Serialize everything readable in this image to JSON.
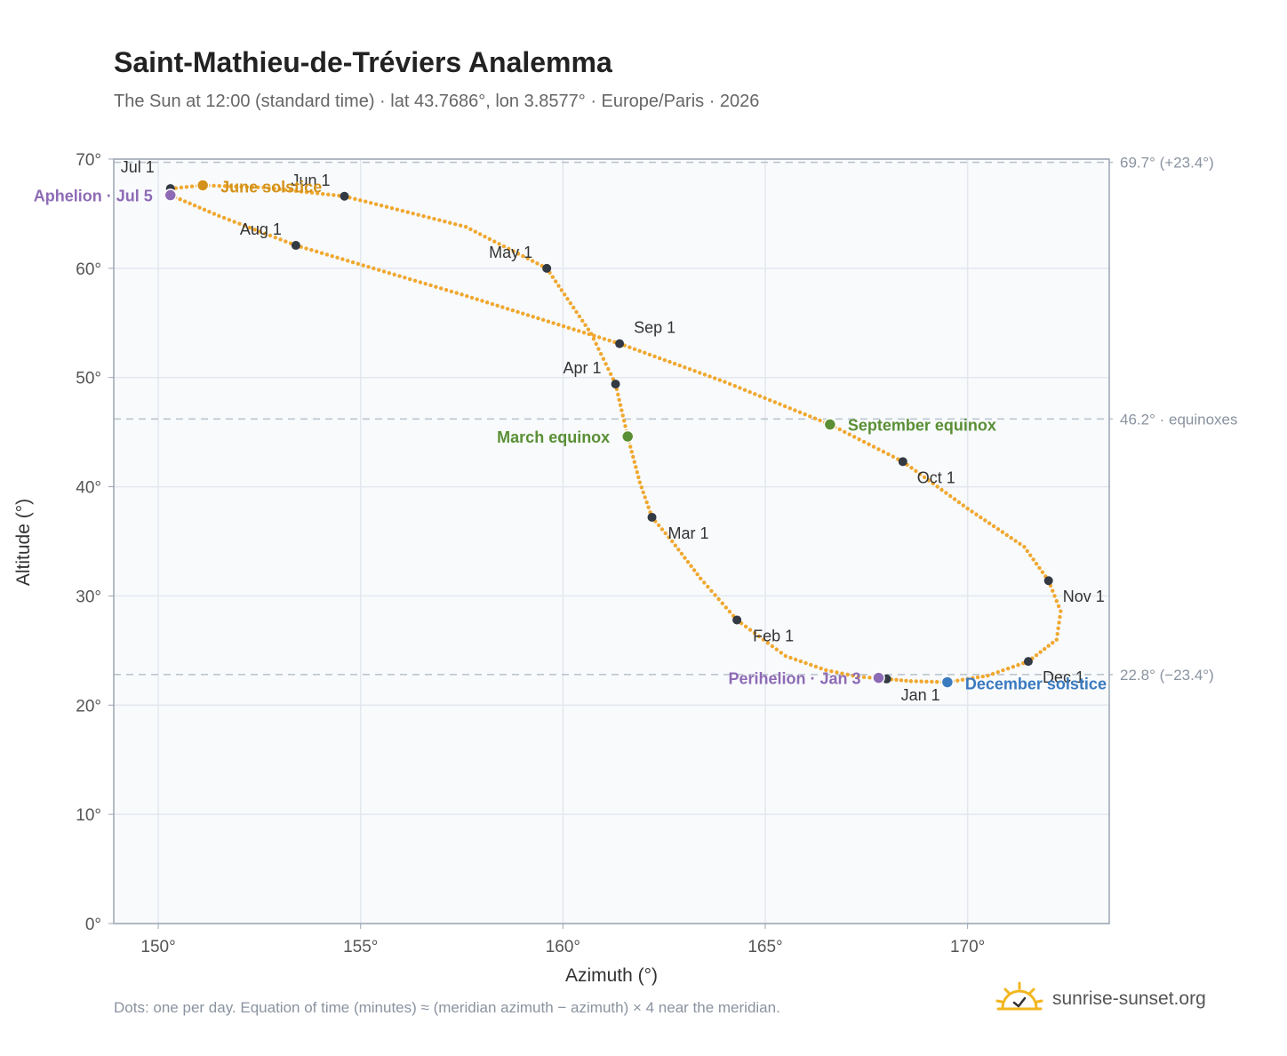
{
  "title": "Saint-Mathieu-de-Tréviers Analemma",
  "subtitle": "The Sun at 12:00 (standard time) · lat 43.7686°, lon 3.8577° · Europe/Paris · 2026",
  "footnote": "Dots: one per day. Equation of time (minutes) ≈ (meridian azimuth − azimuth) × 4 near the meridian.",
  "brand": {
    "name": "sunrise-sunset.org",
    "icon": "sun-check-icon"
  },
  "colors": {
    "path": "#f0a830",
    "month_marker": "#333a44",
    "june_solstice": "#d4921a",
    "december_solstice": "#3a7abf",
    "equinox": "#5a8f35",
    "apsis": "#8e6bb5",
    "reference_line": "#b8c2cc",
    "plot_bg": "#f8fafc",
    "grid": "#e3e8ee",
    "axis": "#9aa5b3"
  },
  "chart_data": {
    "type": "scatter",
    "title": "Saint-Mathieu-de-Tréviers Analemma",
    "xlabel": "Azimuth (°)",
    "ylabel": "Altitude (°)",
    "xlim": [
      148.9,
      173.5
    ],
    "ylim": [
      0,
      70
    ],
    "xticks": [
      150,
      155,
      160,
      165,
      170
    ],
    "xtick_labels": [
      "150°",
      "155°",
      "160°",
      "165°",
      "170°"
    ],
    "yticks": [
      0,
      10,
      20,
      30,
      40,
      50,
      60,
      70
    ],
    "ytick_labels": [
      "0°",
      "10°",
      "20°",
      "30°",
      "40°",
      "50°",
      "60°",
      "70°"
    ],
    "grid": true,
    "analemma_path": [
      [
        168.0,
        22.4
      ],
      [
        167.3,
        22.6
      ],
      [
        166.5,
        23.2
      ],
      [
        165.5,
        24.5
      ],
      [
        164.3,
        27.8
      ],
      [
        163.4,
        31.6
      ],
      [
        162.7,
        35.0
      ],
      [
        162.2,
        37.2
      ],
      [
        161.9,
        40.4
      ],
      [
        161.6,
        44.6
      ],
      [
        161.3,
        49.4
      ],
      [
        160.7,
        54.0
      ],
      [
        159.6,
        60.0
      ],
      [
        157.6,
        63.8
      ],
      [
        154.6,
        66.6
      ],
      [
        152.6,
        67.4
      ],
      [
        151.1,
        67.6
      ],
      [
        150.3,
        67.3
      ],
      [
        150.3,
        66.7
      ],
      [
        151.5,
        64.8
      ],
      [
        153.4,
        62.1
      ],
      [
        157.5,
        57.6
      ],
      [
        161.4,
        53.1
      ],
      [
        164.0,
        49.6
      ],
      [
        166.6,
        45.7
      ],
      [
        168.4,
        42.3
      ],
      [
        170.0,
        38.0
      ],
      [
        171.4,
        34.5
      ],
      [
        172.0,
        31.4
      ],
      [
        172.3,
        28.6
      ],
      [
        172.2,
        26.0
      ],
      [
        171.5,
        24.0
      ],
      [
        170.5,
        22.7
      ],
      [
        169.5,
        22.1
      ],
      [
        168.6,
        22.2
      ],
      [
        168.0,
        22.4
      ]
    ],
    "month_markers": [
      {
        "label": "Jan 1",
        "azimuth": 168.0,
        "altitude": 22.4
      },
      {
        "label": "Feb 1",
        "azimuth": 164.3,
        "altitude": 27.8
      },
      {
        "label": "Mar 1",
        "azimuth": 162.2,
        "altitude": 37.2
      },
      {
        "label": "Apr 1",
        "azimuth": 161.3,
        "altitude": 49.4
      },
      {
        "label": "May 1",
        "azimuth": 159.6,
        "altitude": 60.0
      },
      {
        "label": "Jun 1",
        "azimuth": 154.6,
        "altitude": 66.6
      },
      {
        "label": "Jul 1",
        "azimuth": 150.3,
        "altitude": 67.3
      },
      {
        "label": "Aug 1",
        "azimuth": 153.4,
        "altitude": 62.1
      },
      {
        "label": "Sep 1",
        "azimuth": 161.4,
        "altitude": 53.1
      },
      {
        "label": "Oct 1",
        "azimuth": 168.4,
        "altitude": 42.3
      },
      {
        "label": "Nov 1",
        "azimuth": 172.0,
        "altitude": 31.4
      },
      {
        "label": "Dec 1",
        "azimuth": 171.5,
        "altitude": 24.0
      }
    ],
    "events": [
      {
        "label": "June solstice",
        "azimuth": 151.1,
        "altitude": 67.6,
        "kind": "june_solstice"
      },
      {
        "label": "December solstice",
        "azimuth": 169.5,
        "altitude": 22.1,
        "kind": "december_solstice"
      },
      {
        "label": "March equinox",
        "azimuth": 161.6,
        "altitude": 44.6,
        "kind": "equinox"
      },
      {
        "label": "September equinox",
        "azimuth": 166.6,
        "altitude": 45.7,
        "kind": "equinox"
      },
      {
        "label": "Aphelion · Jul 5",
        "azimuth": 150.3,
        "altitude": 66.7,
        "kind": "apsis"
      },
      {
        "label": "Perihelion · Jan 3",
        "azimuth": 167.8,
        "altitude": 22.5,
        "kind": "apsis"
      }
    ],
    "reference_lines": [
      {
        "altitude": 69.7,
        "label": "69.7° (+23.4°)"
      },
      {
        "altitude": 46.2,
        "label": "46.2° · equinoxes"
      },
      {
        "altitude": 22.8,
        "label": "22.8° (−23.4°)"
      }
    ]
  }
}
